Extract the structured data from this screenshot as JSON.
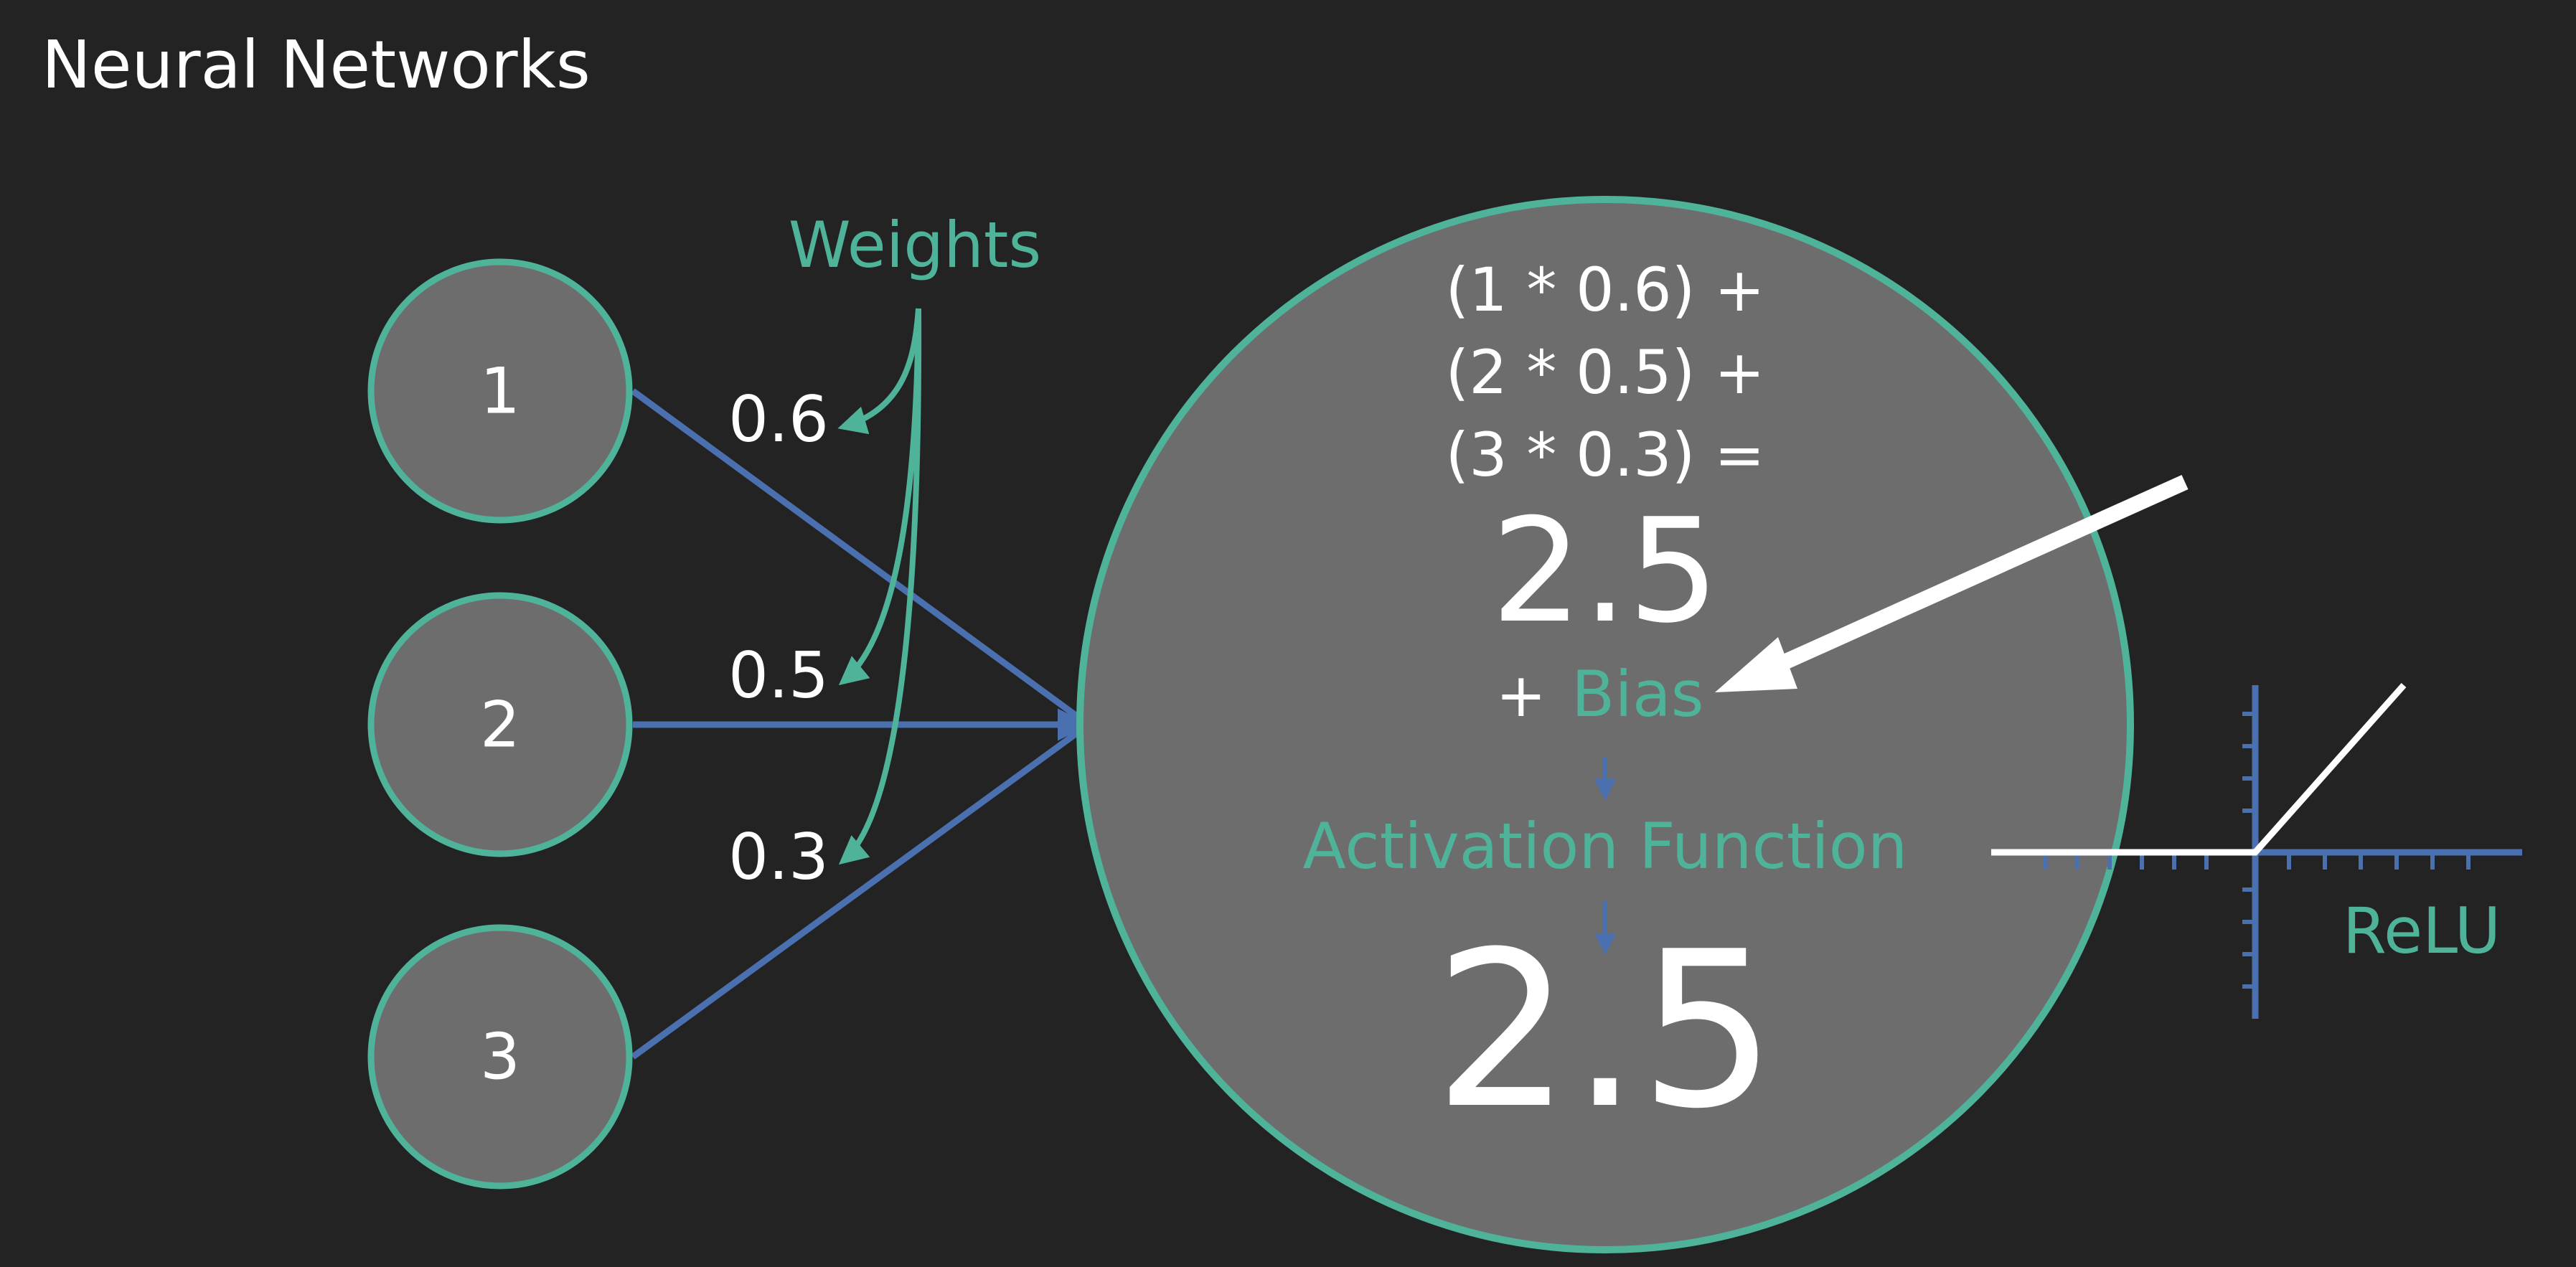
{
  "title": "Neural Networks",
  "inputs": [
    "1",
    "2",
    "3"
  ],
  "weights_label": "Weights",
  "weights": [
    "0.6",
    "0.5",
    "0.3"
  ],
  "equation_lines": [
    "(1 * 0.6) +",
    "(2 * 0.5) +",
    "(3 * 0.3) ="
  ],
  "sum_value": "2.5",
  "bias_plus": "+",
  "bias_label": "Bias",
  "activation_label": "Activation Function",
  "output_value": "2.5",
  "relu_label": "ReLU",
  "colors": {
    "background": "#232323",
    "node_fill": "#6d6d6d",
    "node_stroke": "#4fb39a",
    "connection": "#4a70b0",
    "accent_text": "#4fb39a",
    "text": "#ffffff"
  }
}
